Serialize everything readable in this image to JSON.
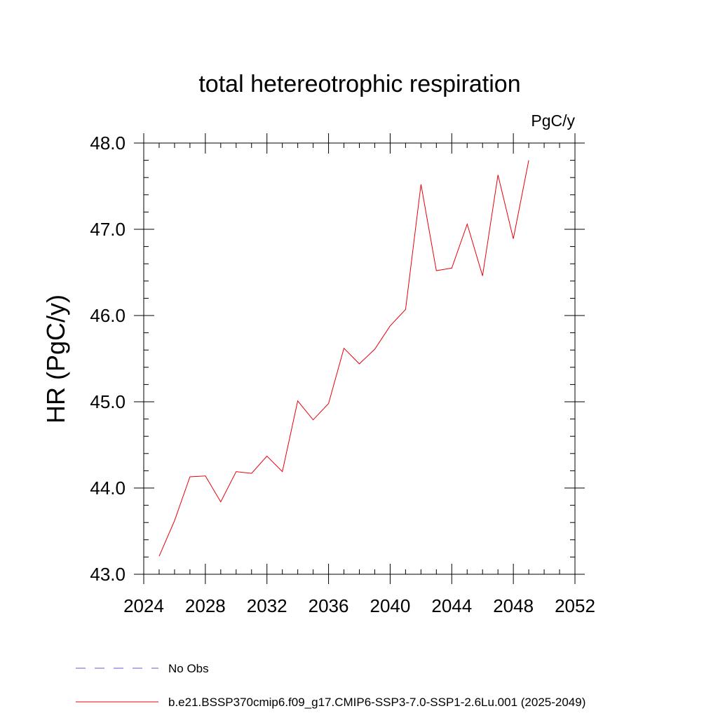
{
  "chart_data": {
    "type": "line",
    "title": "total hetereotrophic respiration",
    "units": "PgC/y",
    "ylabel": "HR  (PgC/y)",
    "xlabel": "",
    "xlim": [
      2024,
      2052
    ],
    "ylim": [
      43.0,
      48.0
    ],
    "xticks": [
      2024,
      2028,
      2032,
      2036,
      2040,
      2044,
      2048,
      2052
    ],
    "xtick_labels": [
      "2024",
      "2028",
      "2032",
      "2036",
      "2040",
      "2044",
      "2048",
      "2052"
    ],
    "yticks": [
      43.0,
      44.0,
      45.0,
      46.0,
      47.0,
      48.0
    ],
    "ytick_labels": [
      "43.0",
      "44.0",
      "45.0",
      "46.0",
      "47.0",
      "48.0"
    ],
    "grid": false,
    "legend_position": "bottom",
    "series": [
      {
        "name": "b.e21.BSSP370cmip6.f09_g17.CMIP6-SSP3-7.0-SSP1-2.6Lu.001 (2025-2049)",
        "color": "#e8000b",
        "style": "solid",
        "x": [
          2025,
          2026,
          2027,
          2028,
          2029,
          2030,
          2031,
          2032,
          2033,
          2034,
          2035,
          2036,
          2037,
          2038,
          2039,
          2040,
          2041,
          2042,
          2043,
          2044,
          2045,
          2046,
          2047,
          2048,
          2049
        ],
        "y": [
          43.21,
          43.62,
          44.13,
          44.14,
          43.84,
          44.19,
          44.17,
          44.37,
          44.19,
          45.01,
          44.79,
          44.98,
          45.62,
          45.44,
          45.61,
          45.88,
          46.07,
          47.52,
          46.52,
          46.55,
          47.06,
          46.46,
          47.63,
          46.89,
          47.8
        ]
      }
    ],
    "legend": [
      {
        "label": "No Obs",
        "color": "#6a5acd",
        "style": "dashed"
      },
      {
        "label": "b.e21.BSSP370cmip6.f09_g17.CMIP6-SSP3-7.0-SSP1-2.6Lu.001 (2025-2049)",
        "color": "#e8000b",
        "style": "solid"
      }
    ]
  }
}
